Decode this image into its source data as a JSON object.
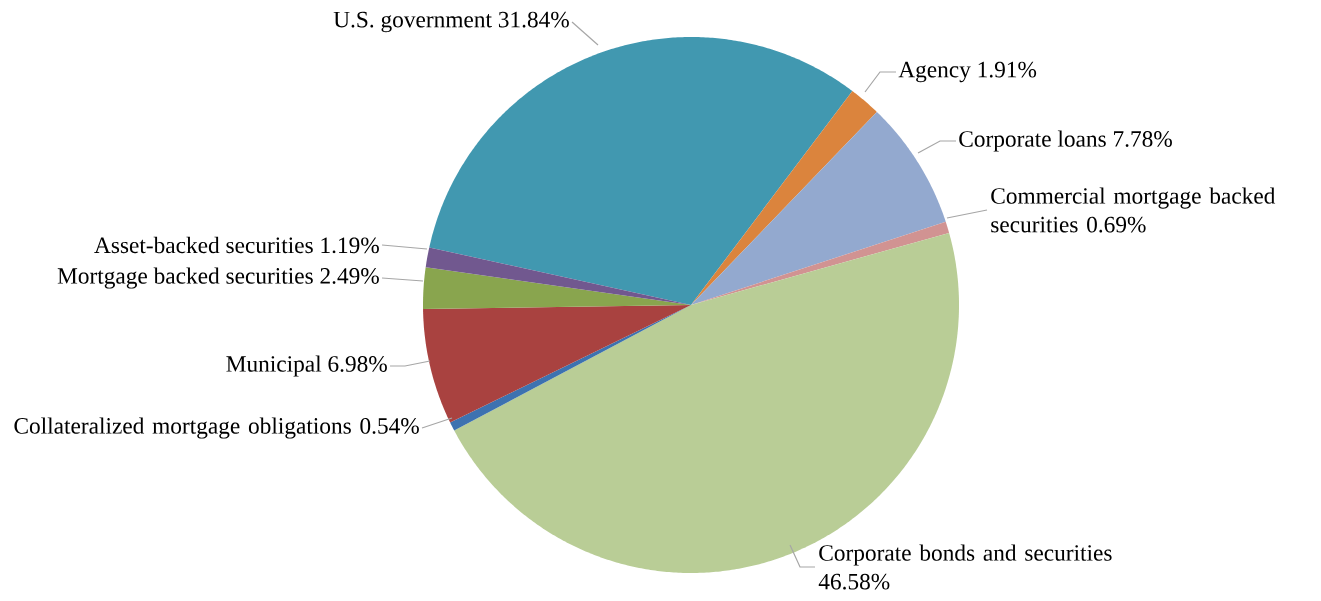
{
  "chart_data": {
    "type": "pie",
    "categories": [
      "U.S. government",
      "Agency",
      "Corporate loans",
      "Commercial mortgage backed securities",
      "Corporate bonds and securities",
      "Collateralized mortgage obligations",
      "Municipal",
      "Mortgage backed securities",
      "Asset-backed securities"
    ],
    "values": [
      31.84,
      1.91,
      7.78,
      0.69,
      46.58,
      0.54,
      6.98,
      2.49,
      1.19
    ],
    "value_labels": [
      "31.84%",
      "1.91%",
      "7.78%",
      "0.69%",
      "46.58%",
      "0.54%",
      "6.98%",
      "2.49%",
      "1.19%"
    ],
    "colors": [
      "#4198b0",
      "#db843d",
      "#93a9cf",
      "#d19392",
      "#b9cd96",
      "#3d72b0",
      "#a94240",
      "#89a54e",
      "#71588f"
    ]
  }
}
